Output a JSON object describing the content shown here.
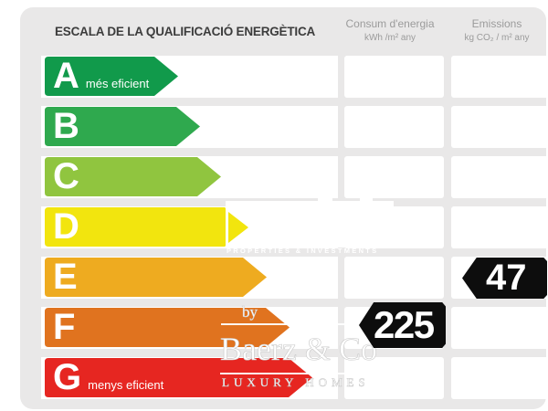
{
  "title": "ESCALA DE LA QUALIFICACIÓ ENERGÈTICA",
  "columns": {
    "consumption": {
      "label": "Consum d'energia",
      "unit": "kWh /m² any"
    },
    "emissions": {
      "label": "Emissions",
      "unit": "kg CO₂ / m² any"
    }
  },
  "ratings": [
    {
      "letter": "A",
      "label": "més eficient",
      "color": "#119a4b",
      "arrow_width": 146
    },
    {
      "letter": "B",
      "label": "",
      "color": "#2fa94e",
      "arrow_width": 170
    },
    {
      "letter": "C",
      "label": "",
      "color": "#90c53f",
      "arrow_width": 193
    },
    {
      "letter": "D",
      "label": "",
      "color": "#f2e50e",
      "arrow_width": 223
    },
    {
      "letter": "E",
      "label": "",
      "color": "#eeab20",
      "arrow_width": 243
    },
    {
      "letter": "F",
      "label": "",
      "color": "#e0731f",
      "arrow_width": 268
    },
    {
      "letter": "G",
      "label": "menys eficient",
      "color": "#e62621",
      "arrow_width": 293
    }
  ],
  "values": {
    "consumption": {
      "value": "225",
      "rating_row": "F"
    },
    "emissions": {
      "value": "47",
      "rating_row": "E"
    }
  },
  "watermark": {
    "agency_tagline": "PROPERTIES & INVESTMENTS",
    "by": "by",
    "brand": "Baerz & Co",
    "tagline": "LUXURY HOMES"
  },
  "colors": {
    "card_background": "#e9e8e8",
    "row_background": "#ffffff",
    "value_arrow": "#0d0d0d",
    "title_text": "#3c3c3c",
    "column_header_text": "#9b9b9b"
  }
}
